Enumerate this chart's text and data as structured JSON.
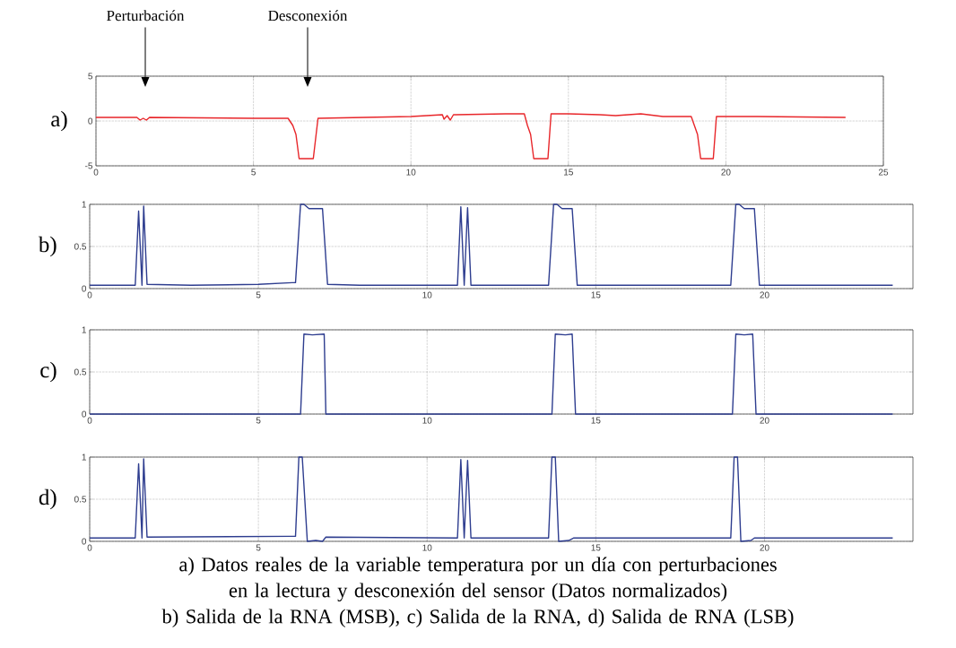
{
  "chart_data": [
    {
      "type": "line",
      "ylabel": "a)",
      "xlim": [
        0,
        25
      ],
      "ylim": [
        -5,
        5
      ],
      "xticks": [
        0,
        5,
        10,
        15,
        20,
        25
      ],
      "yticks": [
        -5,
        0,
        5
      ],
      "grid": true,
      "line_style": "solid",
      "annotations": [
        "Perturbación",
        "Desconexión",
        "a) Datos reales de la variable temperatura por un día con perturbaciones en la lectura y desconexión del sensor (Datos normalizados)",
        "b) Salida de la RNA (MSB), c) Salida de la RNA, d) Salida de RNA (LSB)"
      ],
      "series": [
        {
          "color": "#e8262a",
          "x": [
            0,
            1.3,
            1.4,
            1.5,
            1.6,
            1.7,
            5,
            6.1,
            6.25,
            6.35,
            6.45,
            6.9,
            7.05,
            10,
            11,
            11.05,
            11.15,
            11.25,
            11.35,
            13,
            13.6,
            13.7,
            13.8,
            13.9,
            14.35,
            14.45,
            15,
            16,
            16.5,
            17.3,
            18,
            18.9,
            19.0,
            19.1,
            19.2,
            19.6,
            19.7,
            21,
            23.8
          ],
          "values": [
            0.4,
            0.4,
            0.1,
            0.3,
            0.1,
            0.4,
            0.3,
            0.3,
            -0.5,
            -1.5,
            -4.2,
            -4.2,
            0.3,
            0.5,
            0.7,
            0.2,
            0.6,
            0.1,
            0.7,
            0.8,
            0.8,
            -0.5,
            -1.5,
            -4.2,
            -4.2,
            0.8,
            0.8,
            0.7,
            0.6,
            0.8,
            0.5,
            0.5,
            -0.5,
            -1.5,
            -4.2,
            -4.2,
            0.5,
            0.5,
            0.4
          ]
        }
      ]
    },
    {
      "type": "line",
      "ylabel": "b)",
      "xlim": [
        0,
        24.4
      ],
      "ylim": [
        0,
        1
      ],
      "xticks": [
        0,
        5,
        10,
        15,
        20
      ],
      "yticks": [
        0,
        0.5,
        1
      ],
      "grid": true,
      "line_style": "solid",
      "series": [
        {
          "color": "#2e3d8f",
          "x": [
            0,
            1.35,
            1.45,
            1.55,
            1.6,
            1.7,
            3,
            5,
            6,
            6.1,
            6.25,
            6.35,
            6.5,
            6.9,
            7.05,
            8,
            10.9,
            11.0,
            11.1,
            11.2,
            11.3,
            13.6,
            13.75,
            13.85,
            14.0,
            14.3,
            14.45,
            19.0,
            19.15,
            19.25,
            19.4,
            19.7,
            19.85,
            23.8
          ],
          "values": [
            0.04,
            0.04,
            0.92,
            0.04,
            0.98,
            0.05,
            0.04,
            0.05,
            0.07,
            0.07,
            1.0,
            1.0,
            0.95,
            0.95,
            0.05,
            0.04,
            0.04,
            0.97,
            0.04,
            0.96,
            0.04,
            0.04,
            1.0,
            1.0,
            0.95,
            0.95,
            0.04,
            0.04,
            1.0,
            1.0,
            0.95,
            0.95,
            0.04,
            0.04
          ]
        }
      ]
    },
    {
      "type": "line",
      "ylabel": "c)",
      "xlim": [
        0,
        24.4
      ],
      "ylim": [
        0,
        1
      ],
      "xticks": [
        0,
        5,
        10,
        15,
        20
      ],
      "yticks": [
        0,
        0.5,
        1
      ],
      "grid": true,
      "line_style": "solid",
      "series": [
        {
          "color": "#2e3d8f",
          "x": [
            0,
            6.25,
            6.35,
            6.6,
            6.95,
            7.0,
            13.7,
            13.8,
            14.1,
            14.3,
            14.4,
            19.05,
            19.15,
            19.4,
            19.65,
            19.75,
            23.8
          ],
          "values": [
            0,
            0,
            0.95,
            0.94,
            0.95,
            0,
            0,
            0.95,
            0.94,
            0.95,
            0,
            0,
            0.95,
            0.94,
            0.95,
            0,
            0
          ]
        }
      ]
    },
    {
      "type": "line",
      "ylabel": "d)",
      "xlim": [
        0,
        24.4
      ],
      "ylim": [
        0,
        1
      ],
      "xticks": [
        0,
        5,
        10,
        15,
        20
      ],
      "yticks": [
        0,
        0.5,
        1
      ],
      "grid": true,
      "line_style": "solid",
      "series": [
        {
          "color": "#2e3d8f",
          "x": [
            0,
            1.35,
            1.45,
            1.55,
            1.6,
            1.7,
            6,
            6.1,
            6.2,
            6.3,
            6.45,
            6.7,
            6.9,
            7.0,
            10.9,
            11.0,
            11.1,
            11.2,
            11.3,
            13.6,
            13.7,
            13.8,
            13.9,
            14.2,
            14.35,
            19.0,
            19.1,
            19.2,
            19.3,
            19.6,
            19.7,
            23.8
          ],
          "values": [
            0.04,
            0.04,
            0.92,
            0.04,
            0.98,
            0.05,
            0.06,
            0.06,
            1.0,
            1.0,
            0.0,
            0.01,
            0.0,
            0.05,
            0.04,
            0.97,
            0.04,
            0.96,
            0.04,
            0.04,
            1.0,
            1.0,
            0.0,
            0.01,
            0.04,
            0.04,
            1.0,
            1.0,
            0.0,
            0.01,
            0.04,
            0.04
          ]
        }
      ]
    }
  ]
}
